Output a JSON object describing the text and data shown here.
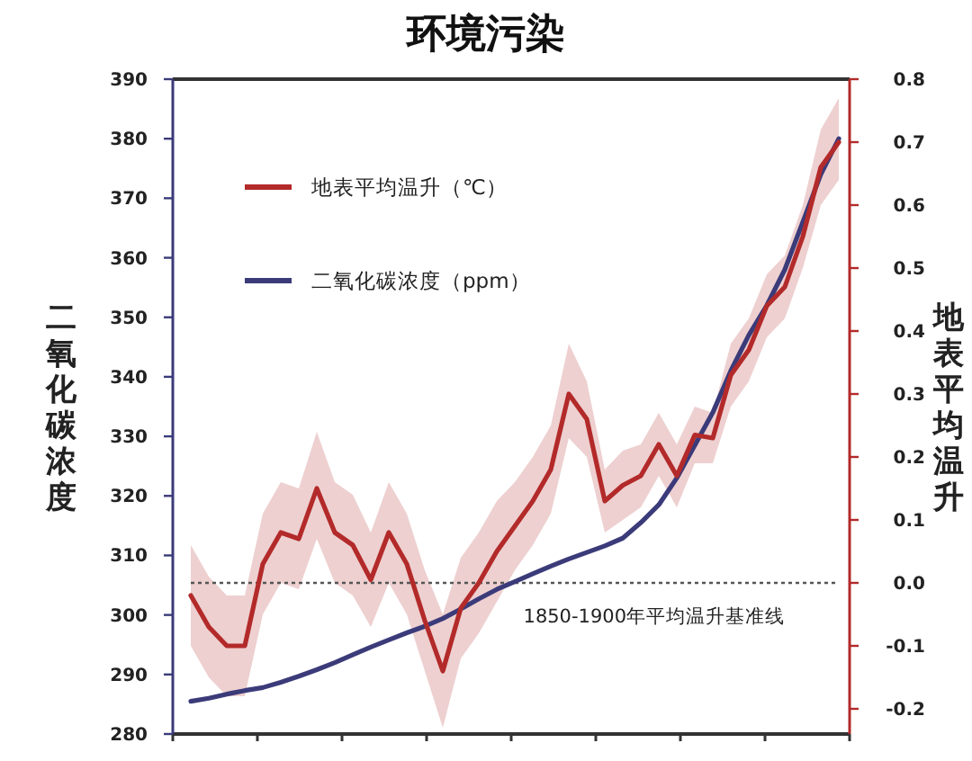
{
  "chart_data": {
    "type": "line",
    "title": "环境污染",
    "ylabel": "二氧化碳浓度",
    "y2label": "地表平均温升",
    "categories": [
      null,
      null,
      null,
      null,
      null,
      null,
      null,
      null,
      null,
      null,
      null,
      null,
      null,
      null,
      null,
      null,
      null,
      null,
      null,
      null,
      null,
      null,
      null,
      null,
      null,
      null,
      null,
      null,
      null,
      null,
      null,
      null,
      null,
      null,
      null,
      null,
      null
    ],
    "series": [
      {
        "name": "地表平均温升（℃）",
        "color": "#b32a2a",
        "axis": "y2",
        "values": [
          -0.02,
          -0.07,
          -0.1,
          -0.1,
          0.03,
          0.08,
          0.07,
          0.15,
          0.08,
          0.06,
          0.005,
          0.08,
          0.03,
          -0.06,
          -0.14,
          -0.04,
          0.0,
          0.05,
          0.09,
          0.13,
          0.18,
          0.3,
          0.26,
          0.13,
          0.155,
          0.17,
          0.22,
          0.17,
          0.235,
          0.23,
          0.33,
          0.37,
          0.44,
          0.47,
          0.55,
          0.66,
          0.7
        ],
        "lower": [
          -0.1,
          -0.15,
          -0.18,
          -0.18,
          -0.05,
          0.0,
          -0.01,
          0.07,
          0.0,
          -0.02,
          -0.07,
          0.0,
          -0.05,
          -0.14,
          -0.23,
          -0.12,
          -0.08,
          -0.03,
          0.02,
          0.06,
          0.11,
          0.23,
          0.2,
          0.08,
          0.1,
          0.12,
          0.17,
          0.12,
          0.19,
          0.19,
          0.28,
          0.32,
          0.39,
          0.42,
          0.5,
          0.6,
          0.64
        ],
        "upper": [
          0.06,
          0.01,
          -0.02,
          -0.02,
          0.11,
          0.16,
          0.15,
          0.24,
          0.16,
          0.14,
          0.08,
          0.16,
          0.11,
          0.02,
          -0.05,
          0.04,
          0.08,
          0.13,
          0.16,
          0.2,
          0.25,
          0.38,
          0.32,
          0.18,
          0.21,
          0.22,
          0.27,
          0.22,
          0.28,
          0.27,
          0.38,
          0.42,
          0.49,
          0.52,
          0.6,
          0.72,
          0.77
        ]
      },
      {
        "name": "二氧化碳浓度（ppm）",
        "color": "#3b3b7a",
        "axis": "y",
        "values": [
          285.5,
          286,
          286.7,
          287.3,
          287.8,
          288.7,
          289.7,
          290.8,
          292,
          293.3,
          294.6,
          295.8,
          297,
          298.1,
          299.4,
          301,
          302.7,
          304.3,
          305.6,
          306.9,
          308.2,
          309.4,
          310.5,
          311.6,
          312.9,
          315.5,
          318.5,
          323,
          328.5,
          334,
          341,
          347,
          352,
          358,
          366,
          374,
          380
        ]
      }
    ],
    "ylim": [
      280,
      390
    ],
    "yticks": [
      280,
      290,
      300,
      310,
      320,
      330,
      340,
      350,
      360,
      370,
      380,
      390
    ],
    "y2lim": [
      -0.24,
      0.8
    ],
    "y2ticks": [
      -0.2,
      -0.1,
      {
        "value": 0,
        "label": "0.0"
      },
      0.1,
      0.2,
      0.3,
      0.4,
      0.5,
      0.6,
      0.7,
      0.8
    ],
    "ref_lines": [
      {
        "axis": "y2",
        "value": 0,
        "label": "1850-1900年平均温升基准线",
        "color": "#555555",
        "line_style": "dotted"
      }
    ],
    "legend": "top left",
    "tick_labels": "y",
    "grid": false
  }
}
